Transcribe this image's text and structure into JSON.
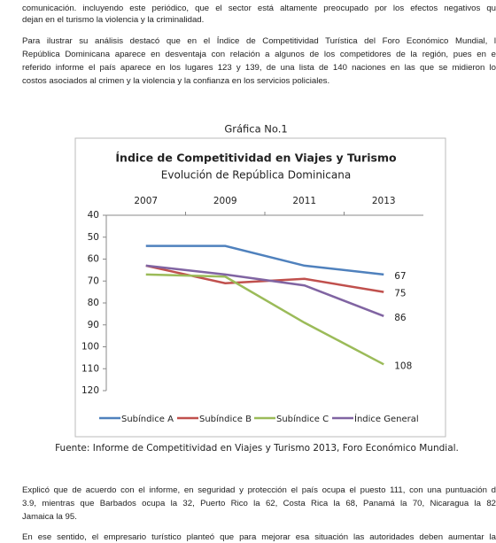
{
  "paragraphs": [
    [
      "comunicación. incluyendo este periódico, que el sector está altamente preocupado por los efectos negativos qu",
      "dejan en el turismo la violencia y la criminalidad."
    ],
    [
      "Para ilustrar su análisis destacó que en el Índice de Competitividad Turística del Foro Económico Mundial, l",
      "República Dominicana aparece en desventaja con relación a algunos de los competidores de la región, pues en e",
      "referido informe el país aparece en los lugares 123 y 139, de una lista de 140 naciones en las que se midieron lo",
      "costos asociados al crimen y la violencia y la confianza en los servicios policiales."
    ],
    [
      "Explicó que de acuerdo con el informe, en seguridad y protección el país ocupa el puesto 111, con una puntuación d",
      "3.9, mientras que Barbados  ocupa la 32, Puerto Rico  la 62, Costa Rica la 68, Panamá la 70, Nicaragua la 82",
      "Jamaica la 95."
    ],
    [
      "En ese sentido, el empresario turístico planteó que para mejorar esa situación las autoridades deben aumentar la"
    ]
  ],
  "figure_caption": "Gráfica No.1",
  "source": "Fuente: Informe de Competitividad en Viajes y Turismo 2013, Foro Económico Mundial.",
  "chart_data": {
    "type": "line",
    "title": "Índice de Competitividad en Viajes y Turismo",
    "subtitle": "Evolución de República Dominicana",
    "categories": [
      "2007",
      "2009",
      "2011",
      "2013"
    ],
    "series": [
      {
        "name": "Subíndice A",
        "color": "#4f81bd",
        "values": [
          54,
          54,
          63,
          67
        ]
      },
      {
        "name": "Subíndice B",
        "color": "#c0504d",
        "values": [
          63,
          71,
          69,
          75
        ]
      },
      {
        "name": "Subíndice C",
        "color": "#9bbb59",
        "values": [
          67,
          68,
          89,
          108
        ]
      },
      {
        "name": "Índice General",
        "color": "#8064a2",
        "values": [
          63,
          67,
          72,
          86
        ]
      }
    ],
    "ylim": [
      40,
      120
    ],
    "yticks": [
      40,
      50,
      60,
      70,
      80,
      90,
      100,
      110,
      120
    ],
    "inverted_y": true,
    "x_axis_position": "top",
    "legend": "bottom",
    "last_value_labels": true
  }
}
